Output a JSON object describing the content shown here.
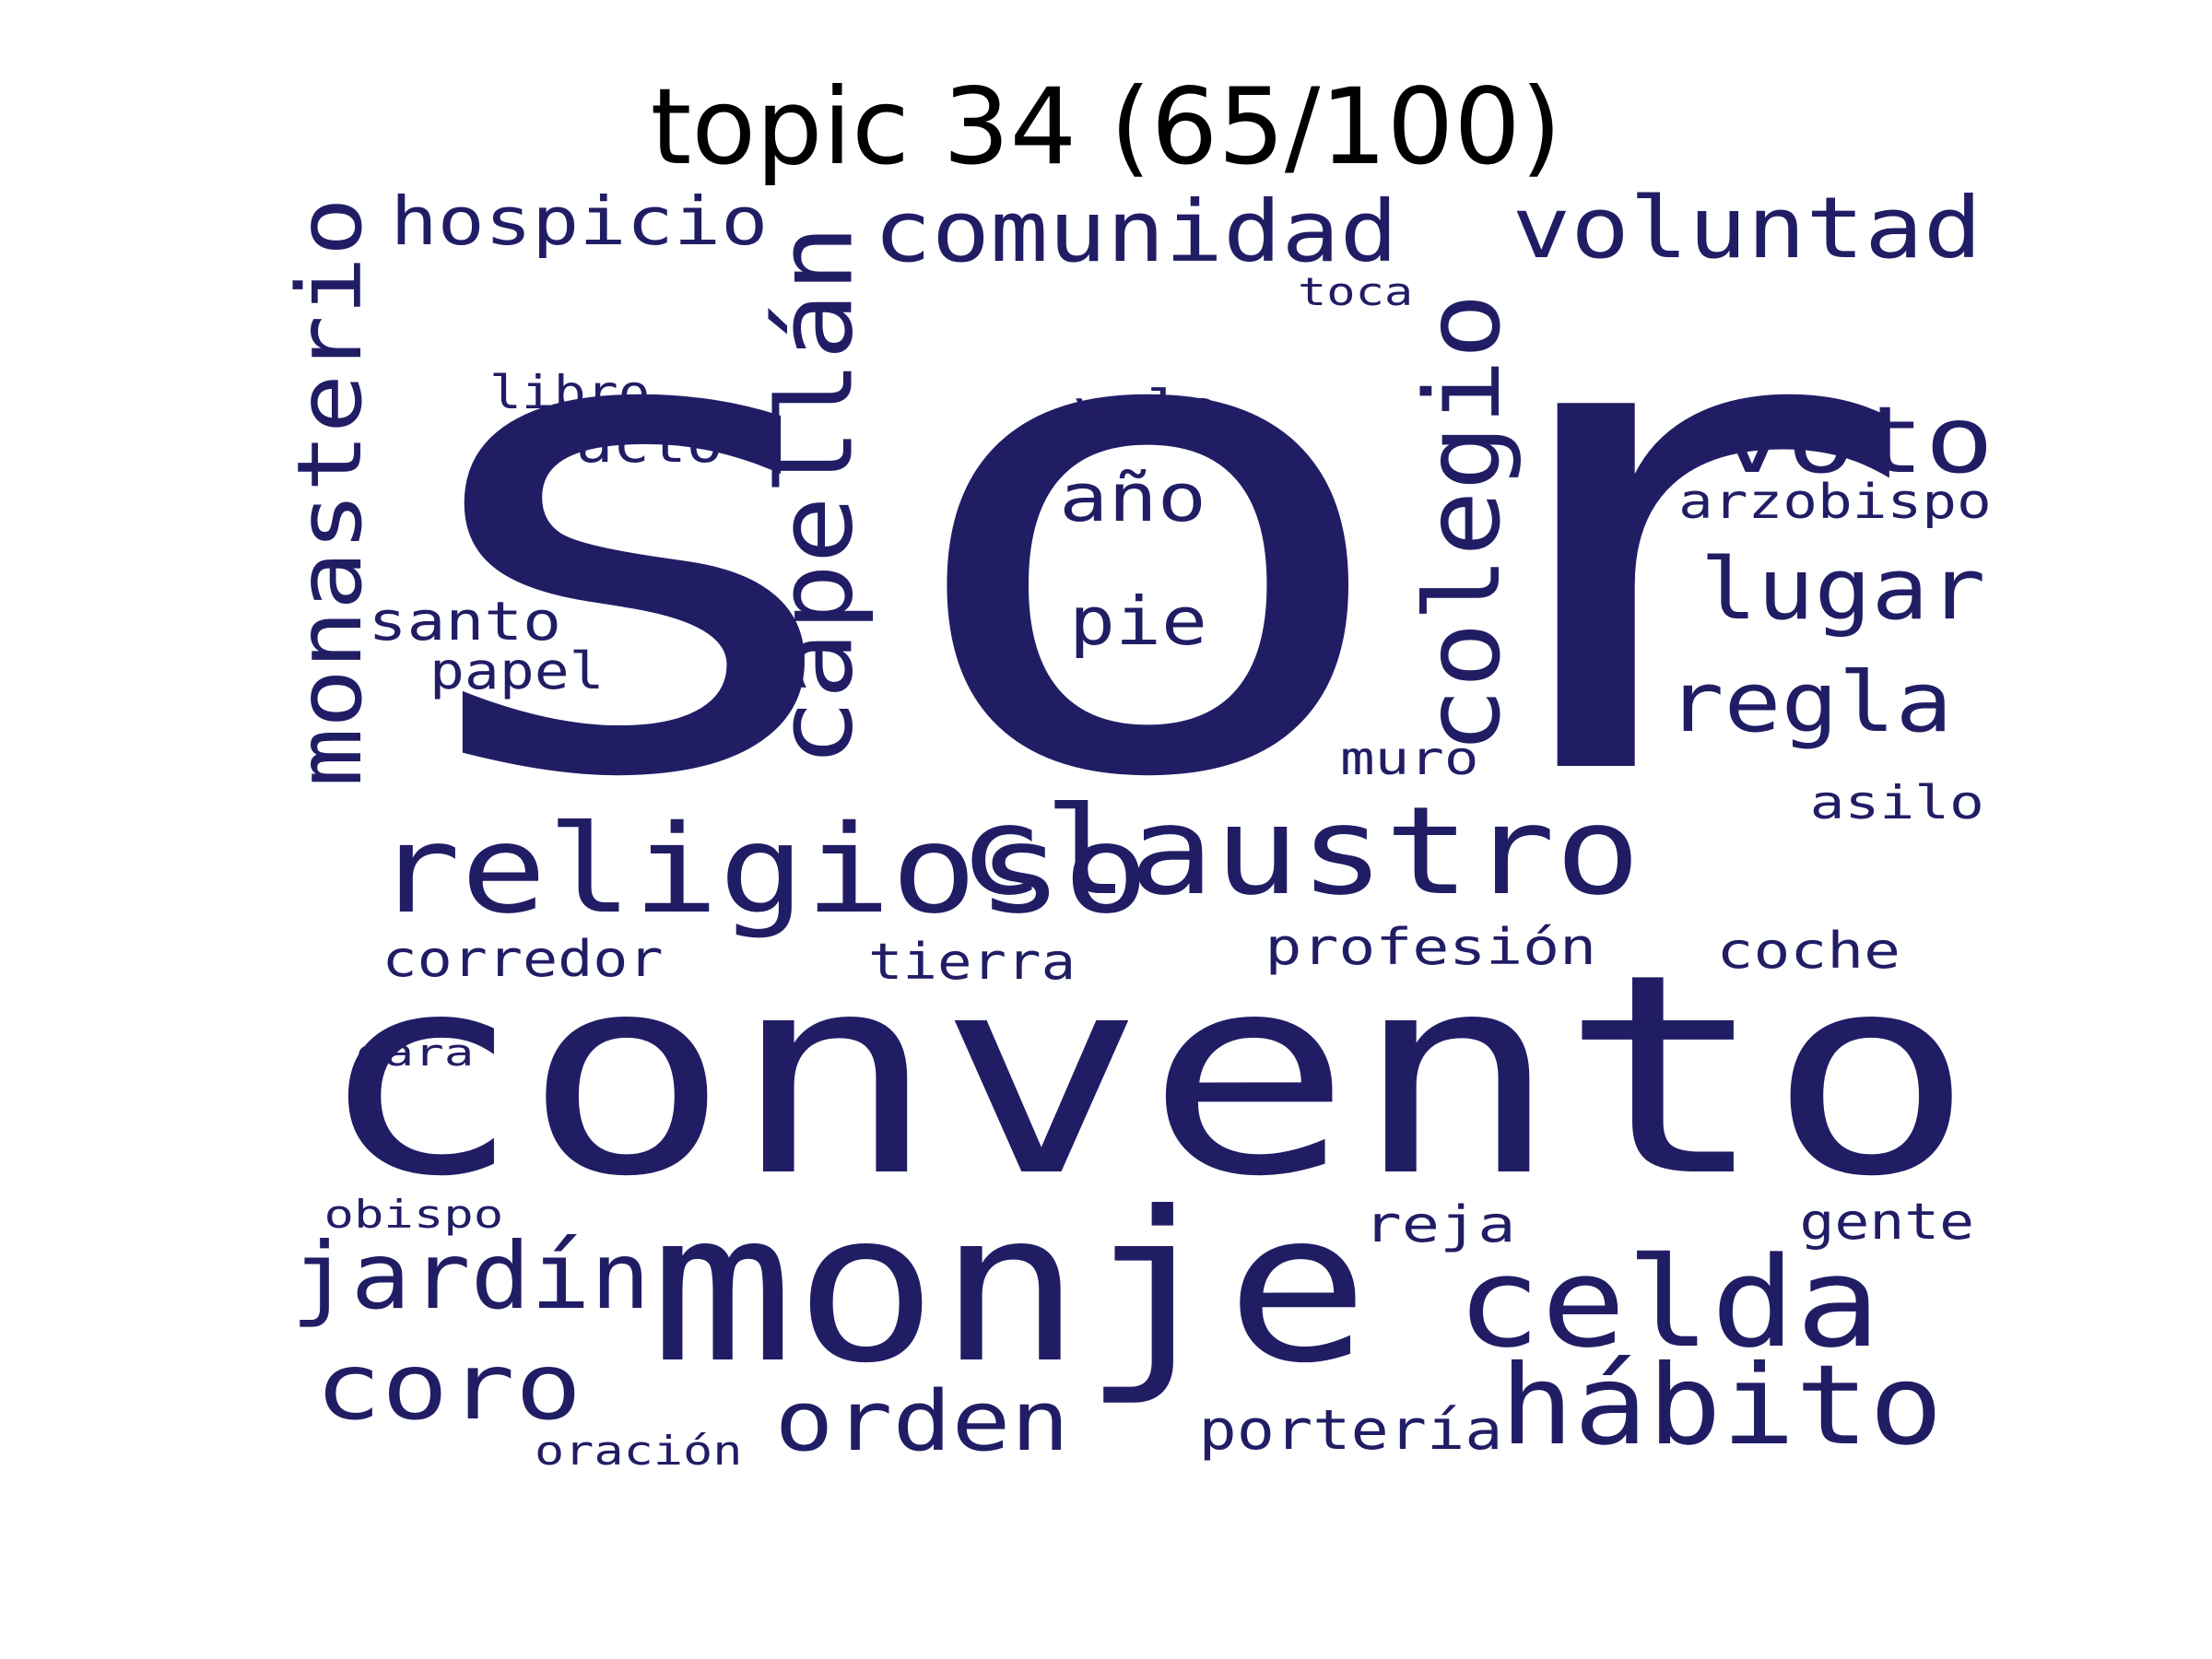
{
  "title": "topic 34 (65/100)",
  "colors": {
    "word": "#211d65",
    "title": "#000000",
    "background": "#ffffff"
  },
  "words": [
    {
      "text": "sor",
      "vertical": false
    },
    {
      "text": "convento",
      "vertical": false
    },
    {
      "text": "monje",
      "vertical": false
    },
    {
      "text": "religioso",
      "vertical": false
    },
    {
      "text": "claustro",
      "vertical": false
    },
    {
      "text": "capellán",
      "vertical": true
    },
    {
      "text": "colegio",
      "vertical": true
    },
    {
      "text": "monasterio",
      "vertical": true
    },
    {
      "text": "celda",
      "vertical": false
    },
    {
      "text": "hábito",
      "vertical": false
    },
    {
      "text": "comunidad",
      "vertical": false
    },
    {
      "text": "voluntad",
      "vertical": false
    },
    {
      "text": "voto",
      "vertical": false
    },
    {
      "text": "jardín",
      "vertical": false
    },
    {
      "text": "coro",
      "vertical": false
    },
    {
      "text": "lugar",
      "vertical": false
    },
    {
      "text": "regla",
      "vertical": false
    },
    {
      "text": "orden",
      "vertical": false
    },
    {
      "text": "hospicio",
      "vertical": false
    },
    {
      "text": "año",
      "vertical": false
    },
    {
      "text": "pie",
      "vertical": false
    },
    {
      "text": "santo",
      "vertical": false
    },
    {
      "text": "acto",
      "vertical": false
    },
    {
      "text": "papel",
      "vertical": false
    },
    {
      "text": "velo",
      "vertical": false
    },
    {
      "text": "libro",
      "vertical": false
    },
    {
      "text": "arzobispo",
      "vertical": false
    },
    {
      "text": "profesión",
      "vertical": false
    },
    {
      "text": "coche",
      "vertical": false
    },
    {
      "text": "tierra",
      "vertical": false
    },
    {
      "text": "corredor",
      "vertical": false
    },
    {
      "text": "portería",
      "vertical": false
    },
    {
      "text": "reja",
      "vertical": false
    },
    {
      "text": "gente",
      "vertical": false
    },
    {
      "text": "muro",
      "vertical": false
    },
    {
      "text": "asilo",
      "vertical": false
    },
    {
      "text": "toca",
      "vertical": false
    },
    {
      "text": "cara",
      "vertical": false
    },
    {
      "text": "obispo",
      "vertical": false
    },
    {
      "text": "oración",
      "vertical": false
    }
  ]
}
